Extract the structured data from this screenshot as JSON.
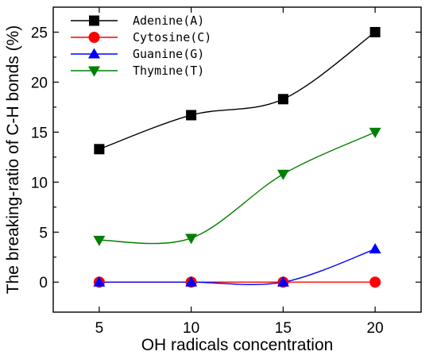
{
  "chart_data": {
    "type": "line",
    "title": "",
    "xlabel": "OH radicals concentration",
    "ylabel": "The breaking-ratio of C-H bonds (%)",
    "x": [
      5,
      10,
      15,
      20
    ],
    "xlim": [
      2.5,
      22.5
    ],
    "ylim": [
      -3,
      27.5
    ],
    "xticks": [
      5,
      10,
      15,
      20
    ],
    "yticks": [
      0,
      5,
      10,
      15,
      20,
      25
    ],
    "grid": false,
    "legend_position": "top-left",
    "series": [
      {
        "name": "Adenine(A)",
        "values": [
          13.3,
          16.7,
          18.3,
          25.0
        ],
        "color": "#000000",
        "marker": "square"
      },
      {
        "name": "Cytosine(C)",
        "values": [
          0,
          0,
          0,
          0
        ],
        "color": "#ff0000",
        "marker": "circle"
      },
      {
        "name": "Guanine(G)",
        "values": [
          0,
          0,
          0,
          3.3
        ],
        "color": "#0000ff",
        "marker": "triangle-up"
      },
      {
        "name": "Thymine(T)",
        "values": [
          4.2,
          4.4,
          10.8,
          15.0
        ],
        "color": "#008000",
        "marker": "triangle-down"
      }
    ]
  }
}
